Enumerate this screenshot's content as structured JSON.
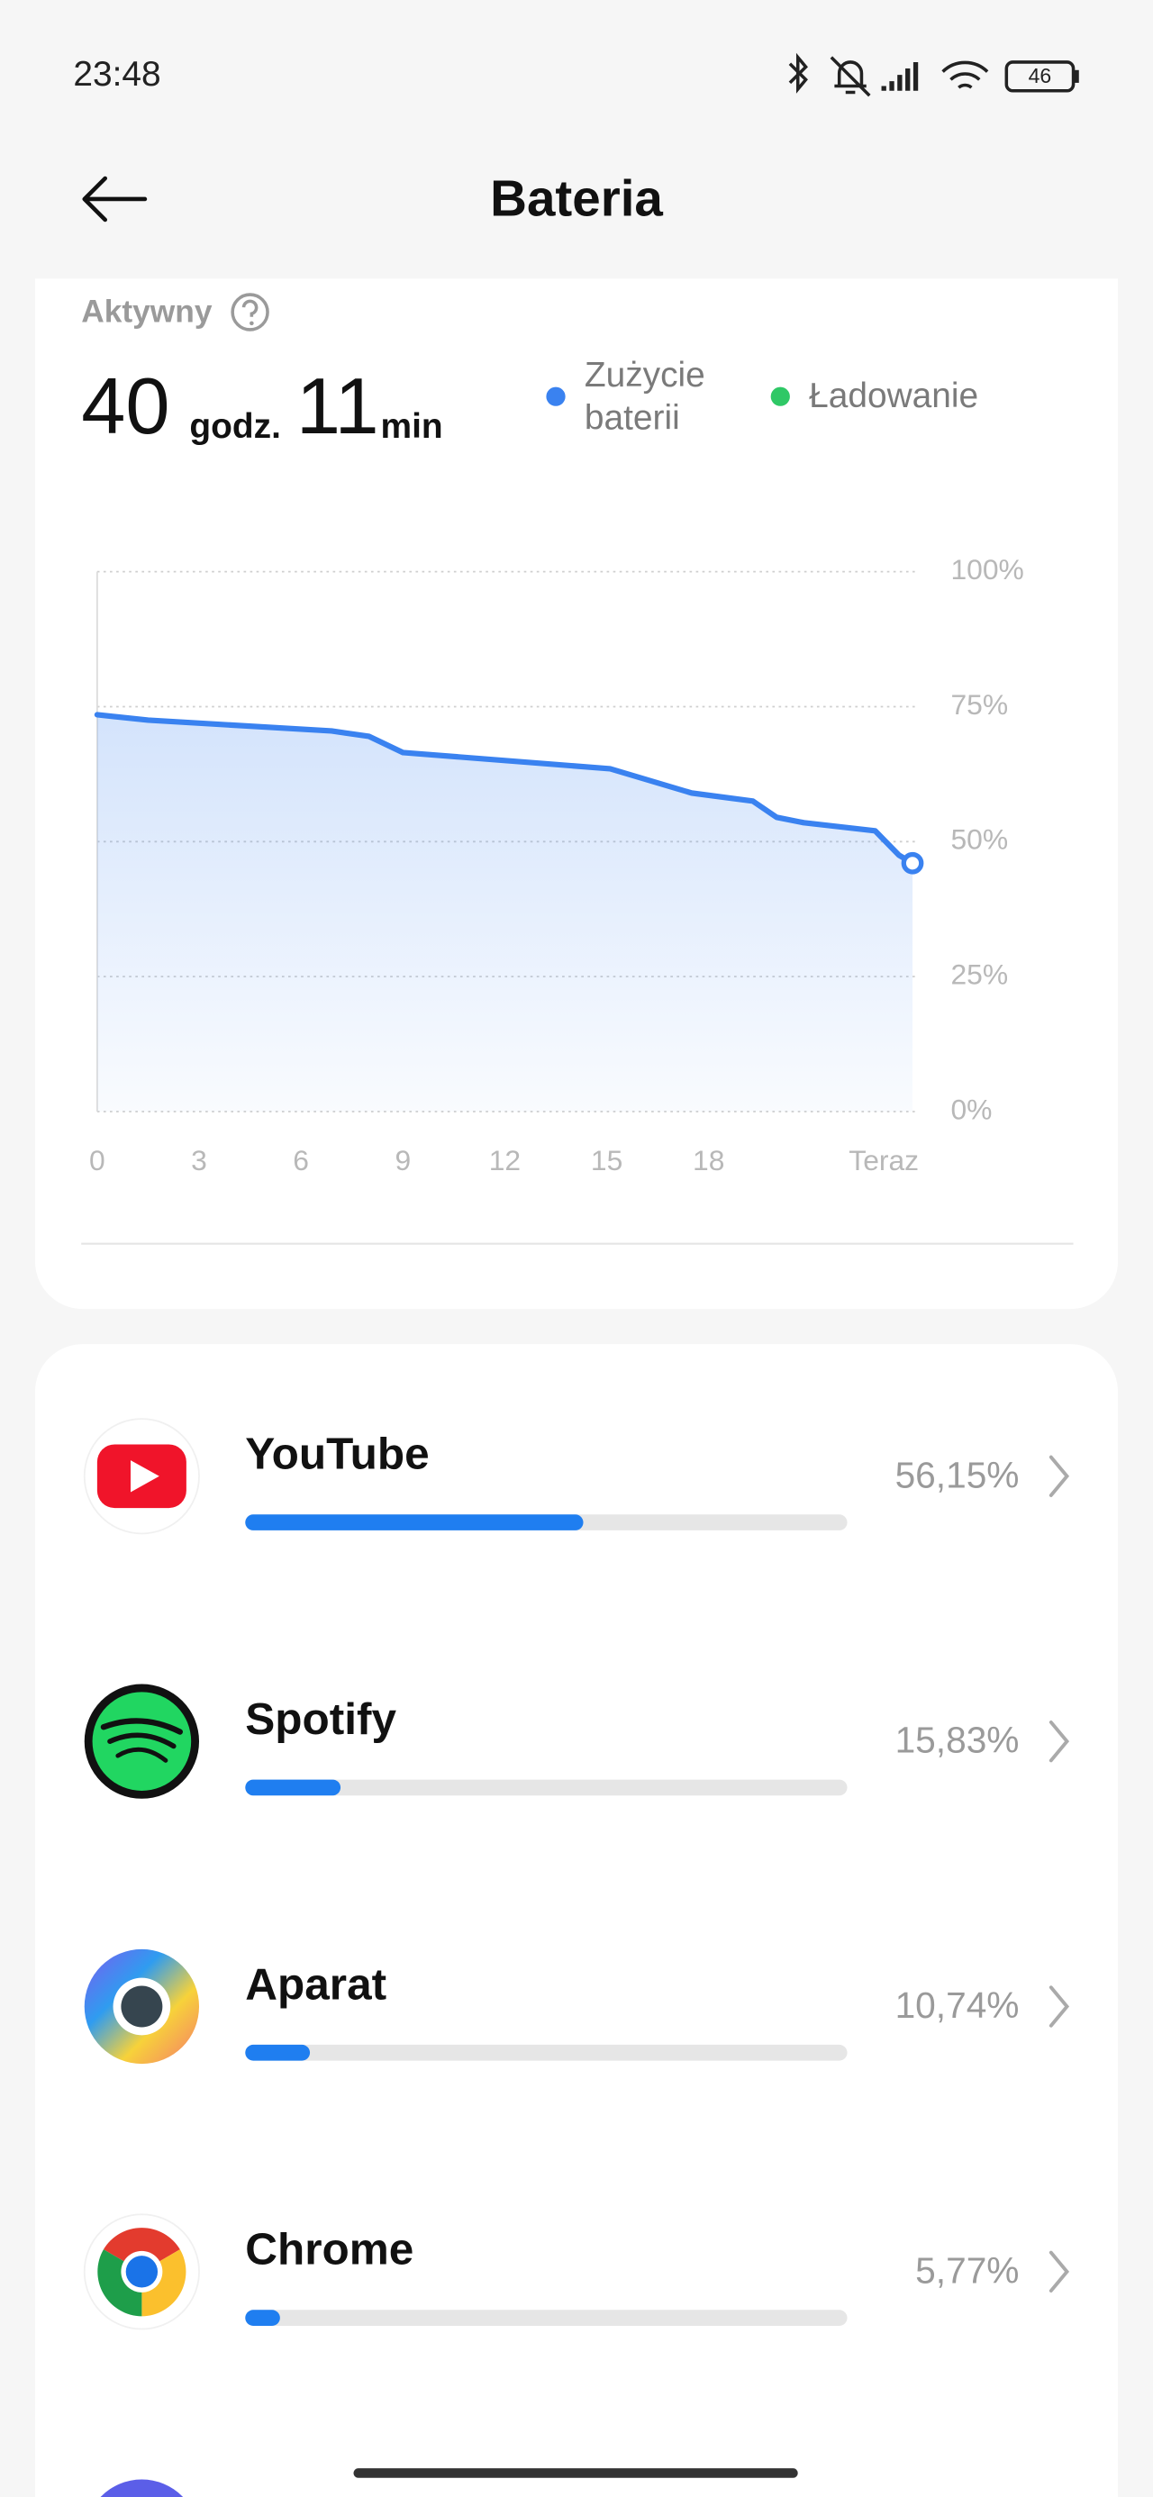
{
  "status_bar": {
    "time": "23:48",
    "battery": "46"
  },
  "header": {
    "title": "Bateria"
  },
  "summary": {
    "label": "Aktywny",
    "hours": "40",
    "hours_unit": "godz.",
    "minutes": "11",
    "minutes_unit": "min"
  },
  "chart_data": {
    "type": "line",
    "x": [
      0,
      1.5,
      6.9,
      8,
      9,
      15.1,
      17.5,
      19.3,
      20,
      20.8,
      22.9,
      23.6,
      24
    ],
    "series": [
      {
        "name": "Zużycie baterii",
        "color": "#3a82f0",
        "values": [
          73.5,
          72.5,
          70.5,
          69.5,
          66.5,
          63.5,
          59,
          57.5,
          54.5,
          53.5,
          52,
          47.5,
          46
        ]
      },
      {
        "name": "Ładowanie",
        "color": "#2fc866",
        "values": [
          null,
          null,
          null,
          null,
          null,
          null,
          null,
          null,
          null,
          null,
          null,
          null,
          null
        ]
      }
    ],
    "xlim": [
      0,
      24
    ],
    "xticks": [
      0,
      3,
      6,
      9,
      12,
      15,
      18,
      {
        "value": 24,
        "label": "Teraz"
      }
    ],
    "ylim": [
      0,
      100
    ],
    "yticks": [
      {
        "value": 0,
        "label": "0%"
      },
      {
        "value": 25,
        "label": "25%"
      },
      {
        "value": 50,
        "label": "50%"
      },
      {
        "value": 75,
        "label": "75%"
      },
      {
        "value": 100,
        "label": "100%"
      }
    ],
    "grid": true
  },
  "apps": [
    {
      "name": "YouTube",
      "share": 56.15,
      "share_label": "56,15%"
    },
    {
      "name": "Spotify",
      "share": 15.83,
      "share_label": "15,83%"
    },
    {
      "name": "Aparat",
      "share": 10.74,
      "share_label": "10,74%"
    },
    {
      "name": "Chrome",
      "share": 5.77,
      "share_label": "5,77%"
    }
  ]
}
